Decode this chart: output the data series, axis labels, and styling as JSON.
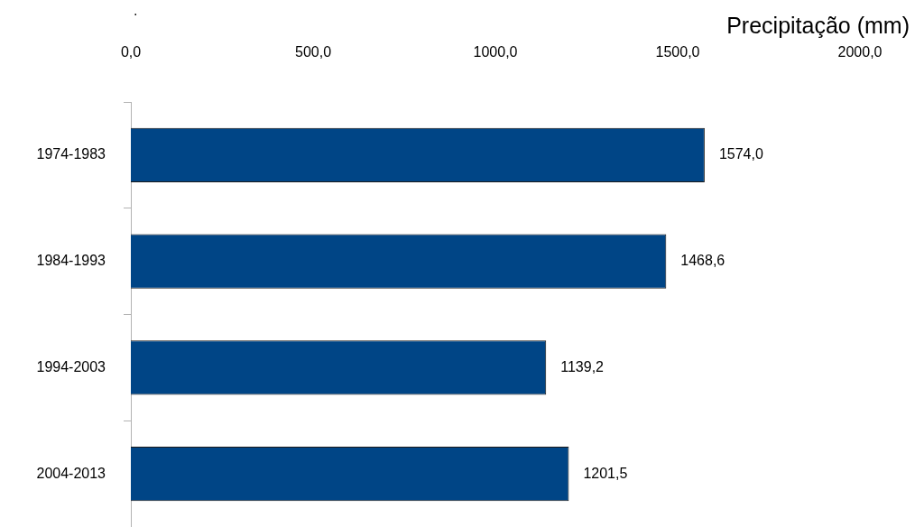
{
  "chart_data": {
    "type": "bar",
    "orientation": "horizontal",
    "title": ".",
    "xlabel": "Precipitação (mm)",
    "categories": [
      "1974-1983",
      "1984-1993",
      "1994-2003",
      "2004-2013"
    ],
    "values": [
      1574.0,
      1468.6,
      1139.2,
      1201.5
    ],
    "color": "#004586",
    "value_labels": [
      "1574,0",
      "1468,6",
      "1139,2",
      "1201,5"
    ],
    "xlim": [
      0,
      2000
    ],
    "xticks": [
      {
        "value": 0,
        "label": "0,0"
      },
      {
        "value": 500,
        "label": "500,0"
      },
      {
        "value": 1000,
        "label": "1000,0"
      },
      {
        "value": 1500,
        "label": "1500,0"
      },
      {
        "value": 2000,
        "label": "2000,0"
      }
    ]
  }
}
